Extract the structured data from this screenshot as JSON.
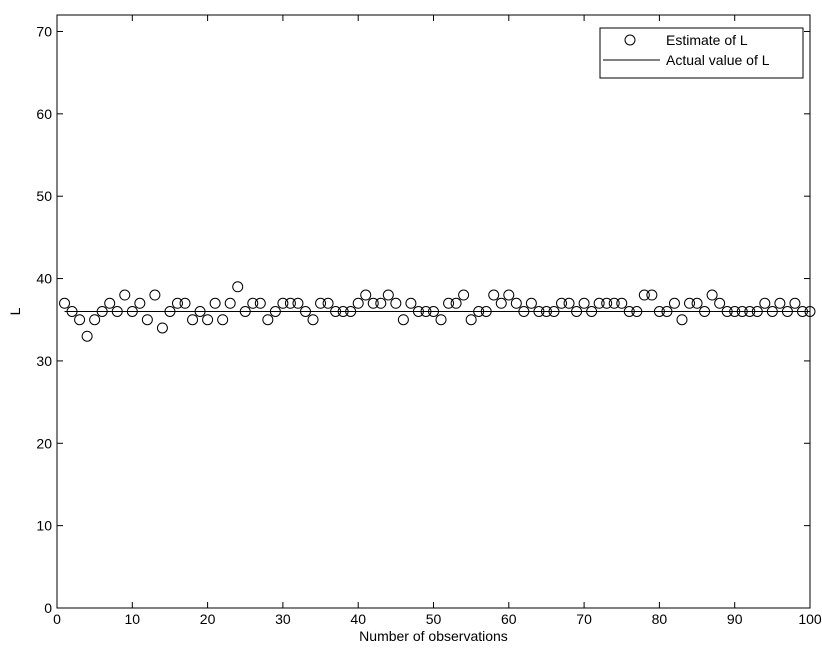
{
  "chart_data": {
    "type": "scatter",
    "title": "",
    "xlabel": "Number of observations",
    "ylabel": "L",
    "xlim": [
      0,
      100
    ],
    "ylim": [
      0,
      72
    ],
    "xticks": [
      0,
      10,
      20,
      30,
      40,
      50,
      60,
      70,
      80,
      90,
      100
    ],
    "yticks": [
      0,
      10,
      20,
      30,
      40,
      50,
      60,
      70
    ],
    "grid": false,
    "legend_position": "top-right",
    "series": [
      {
        "name": "Estimate of L",
        "marker": "open-circle",
        "x": [
          1,
          2,
          3,
          4,
          5,
          6,
          7,
          8,
          9,
          10,
          11,
          12,
          13,
          14,
          15,
          16,
          17,
          18,
          19,
          20,
          21,
          22,
          23,
          24,
          25,
          26,
          27,
          28,
          29,
          30,
          31,
          32,
          33,
          34,
          35,
          36,
          37,
          38,
          39,
          40,
          41,
          42,
          43,
          44,
          45,
          46,
          47,
          48,
          49,
          50,
          51,
          52,
          53,
          54,
          55,
          56,
          57,
          58,
          59,
          60,
          61,
          62,
          63,
          64,
          65,
          66,
          67,
          68,
          69,
          70,
          71,
          72,
          73,
          74,
          75,
          76,
          77,
          78,
          79,
          80,
          81,
          82,
          83,
          84,
          85,
          86,
          87,
          88,
          89,
          90,
          91,
          92,
          93,
          94,
          95,
          96,
          97,
          98,
          99,
          100
        ],
        "y": [
          37,
          36,
          35,
          33,
          35,
          36,
          37,
          36,
          38,
          36,
          37,
          35,
          38,
          34,
          36,
          37,
          37,
          35,
          36,
          35,
          37,
          35,
          37,
          39,
          36,
          37,
          37,
          35,
          36,
          37,
          37,
          37,
          36,
          35,
          37,
          37,
          36,
          36,
          36,
          37,
          38,
          37,
          37,
          38,
          37,
          35,
          37,
          36,
          36,
          36,
          35,
          37,
          37,
          38,
          35,
          36,
          36,
          38,
          37,
          38,
          37,
          36,
          37,
          36,
          36,
          36,
          37,
          37,
          36,
          37,
          36,
          37,
          37,
          37,
          37,
          36,
          36,
          38,
          38,
          36,
          36,
          37,
          35,
          37,
          37,
          36,
          38,
          37,
          36,
          36,
          36,
          36,
          36,
          37,
          36,
          37,
          36,
          37,
          36,
          36
        ]
      },
      {
        "name": "Actual value of L",
        "marker": "line",
        "x": [
          1,
          100
        ],
        "y": [
          36,
          36
        ]
      }
    ]
  }
}
